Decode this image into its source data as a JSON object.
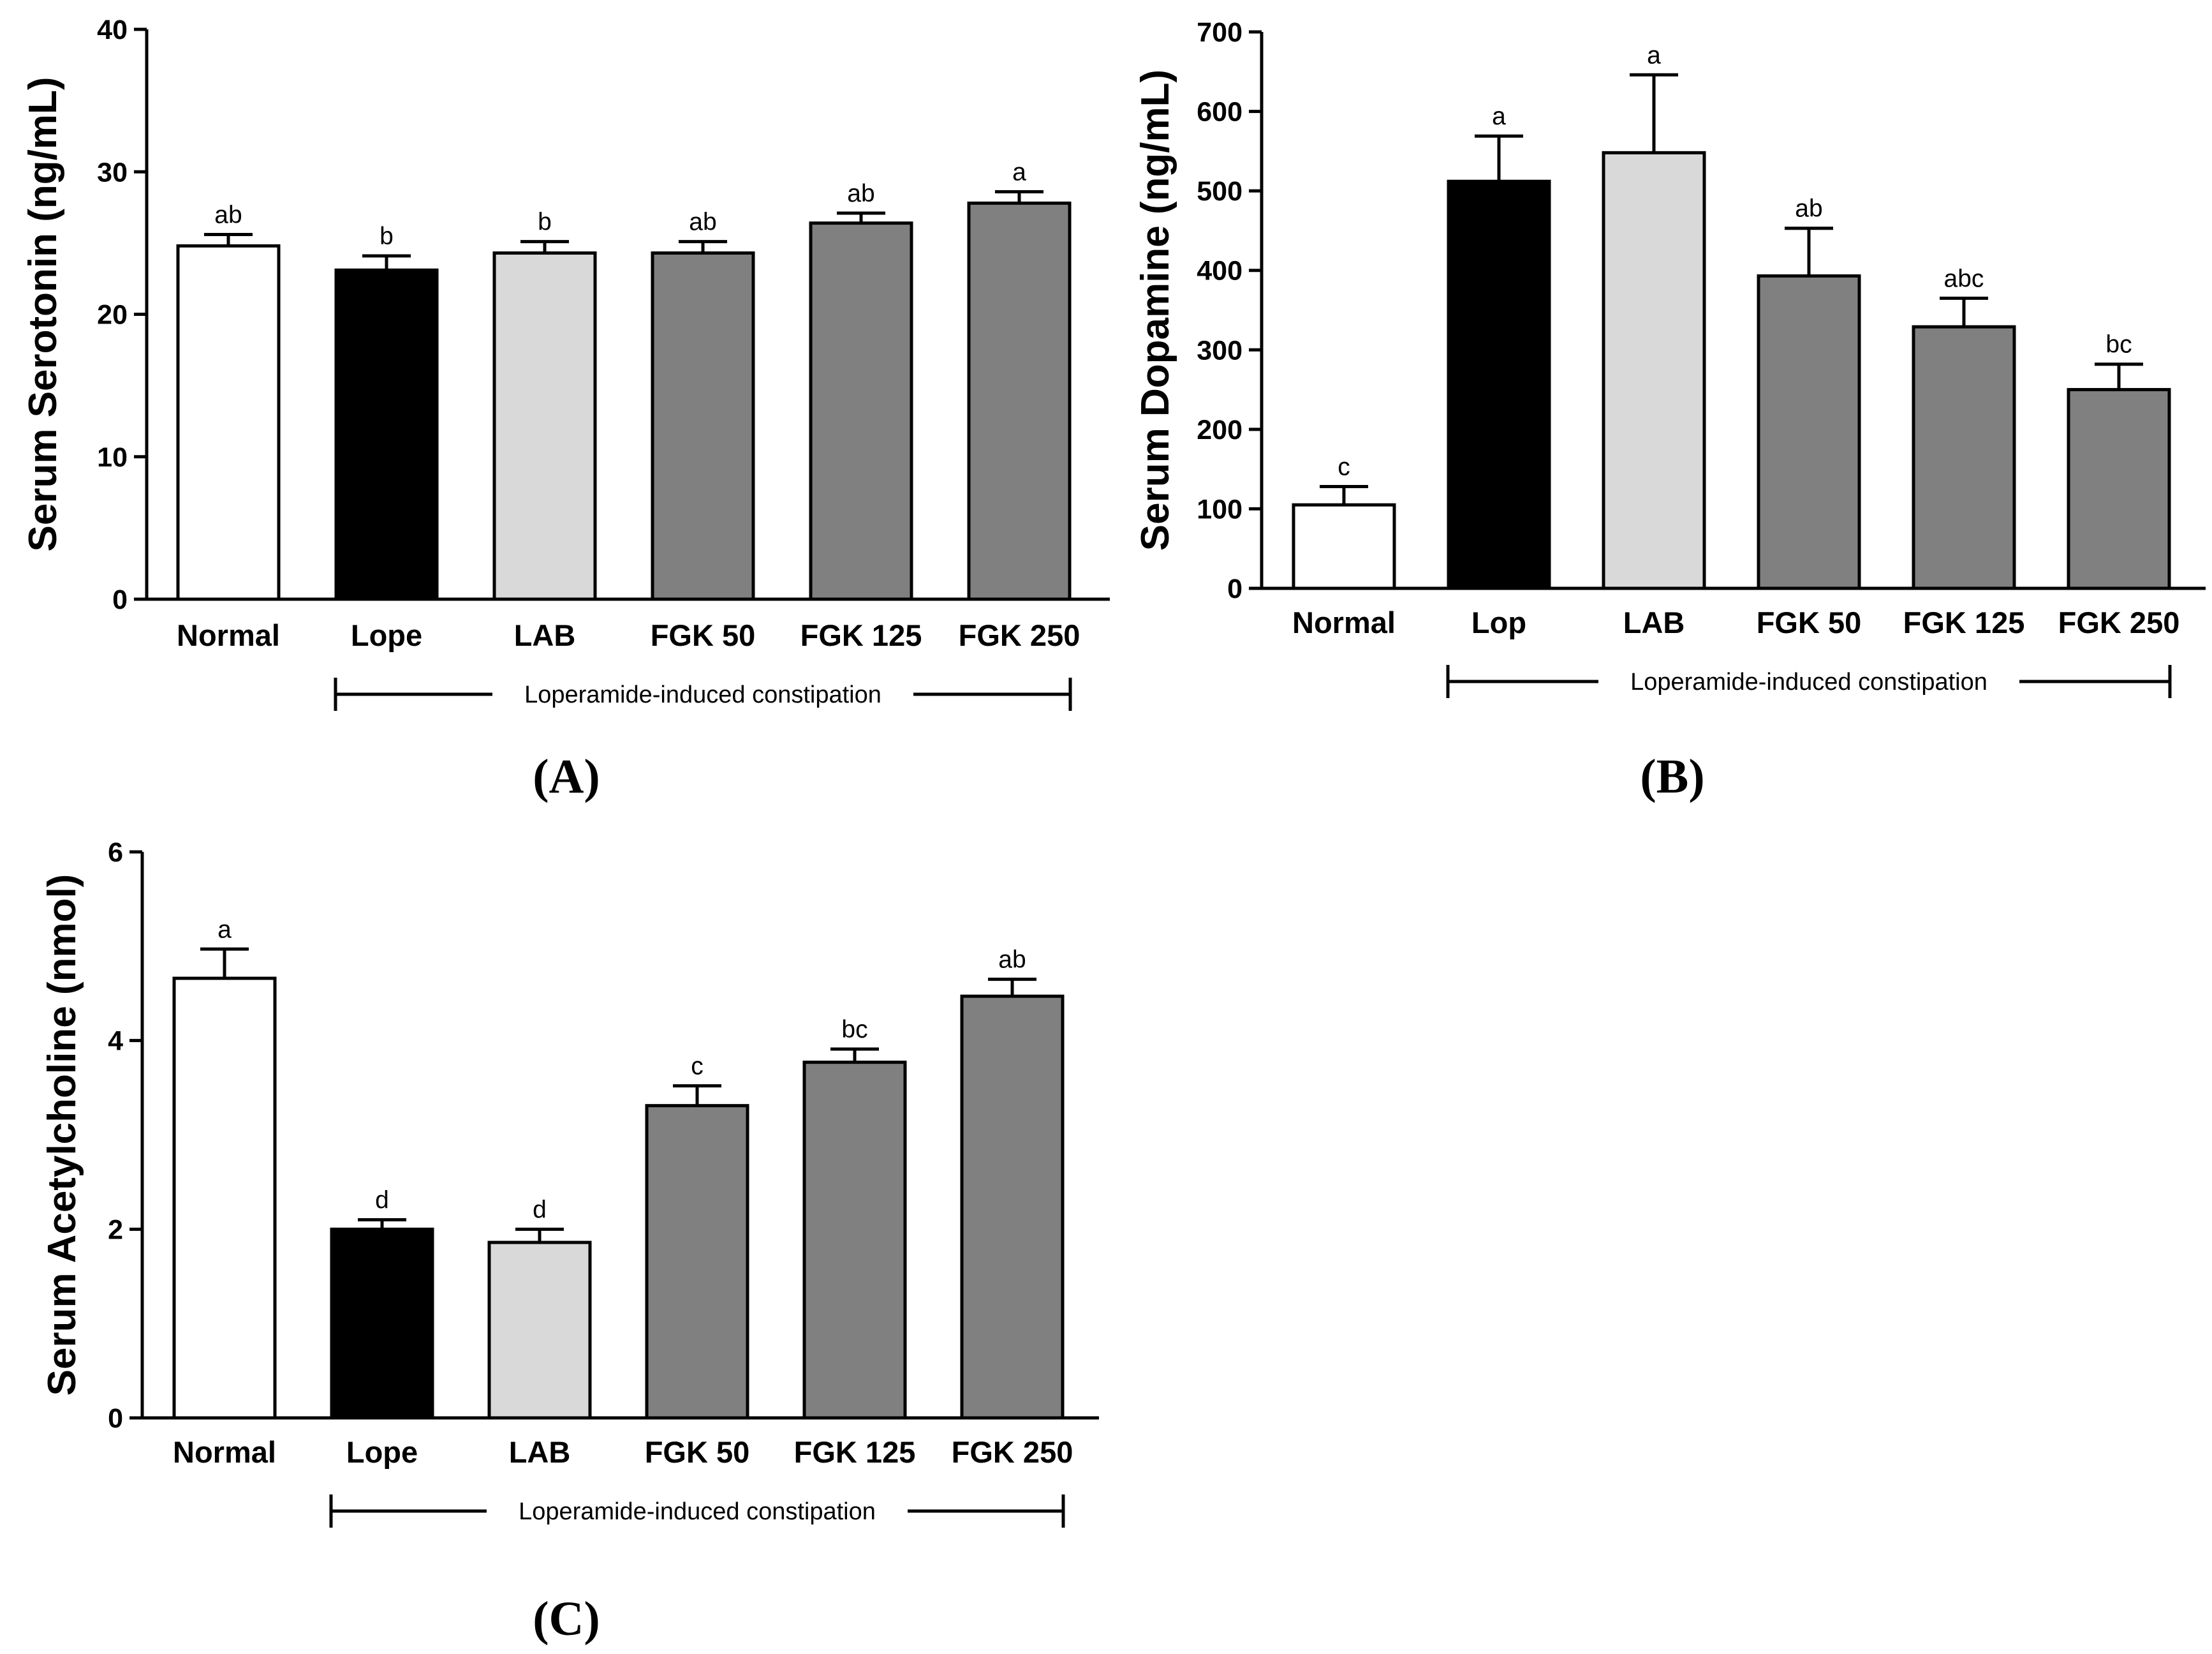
{
  "chart_data": [
    {
      "type": "bar",
      "panel_label": "(A)",
      "title": "",
      "xlabel": "",
      "ylabel": "Serum Serotonin (ng/mL)",
      "ylim": [
        0,
        40
      ],
      "yticks": [
        0,
        10,
        20,
        30,
        40
      ],
      "grid": false,
      "categories": [
        "Normal",
        "Lope",
        "LAB",
        "FGK 50",
        "FGK 125",
        "FGK 250"
      ],
      "values": [
        24.8,
        23.1,
        24.3,
        24.3,
        26.4,
        27.8
      ],
      "errors": [
        0.8,
        1.0,
        0.8,
        0.8,
        0.7,
        0.8
      ],
      "significance": [
        "ab",
        "b",
        "b",
        "ab",
        "ab",
        "a"
      ],
      "bar_colors": [
        "#ffffff",
        "#000000",
        "#d9d9d9",
        "#808080",
        "#808080",
        "#808080"
      ],
      "group_bracket": {
        "label": "Loperamide-induced constipation",
        "from": "Lope",
        "to": "FGK 250"
      }
    },
    {
      "type": "bar",
      "panel_label": "(B)",
      "title": "",
      "xlabel": "",
      "ylabel": "Serum Dopamine (ng/mL)",
      "ylim": [
        0,
        700
      ],
      "yticks": [
        0,
        100,
        200,
        300,
        400,
        500,
        600,
        700
      ],
      "grid": false,
      "categories": [
        "Normal",
        "Lop",
        "LAB",
        "FGK 50",
        "FGK 125",
        "FGK 250"
      ],
      "values": [
        105,
        512,
        548,
        393,
        329,
        250
      ],
      "errors": [
        23,
        57,
        98,
        60,
        36,
        32
      ],
      "significance": [
        "c",
        "a",
        "a",
        "ab",
        "abc",
        "bc"
      ],
      "bar_colors": [
        "#ffffff",
        "#000000",
        "#d9d9d9",
        "#808080",
        "#808080",
        "#808080"
      ],
      "group_bracket": {
        "label": "Loperamide-induced constipation",
        "from": "Lop",
        "to": "FGK 250"
      }
    },
    {
      "type": "bar",
      "panel_label": "(C)",
      "title": "",
      "xlabel": "",
      "ylabel": "Serum Acetylcholine (nmol)",
      "ylim": [
        0,
        6
      ],
      "yticks": [
        0,
        2,
        4,
        6
      ],
      "grid": false,
      "categories": [
        "Normal",
        "Lope",
        "LAB",
        "FGK 50",
        "FGK 125",
        "FGK 250"
      ],
      "values": [
        4.66,
        2.0,
        1.86,
        3.31,
        3.77,
        4.47
      ],
      "errors": [
        0.31,
        0.1,
        0.14,
        0.21,
        0.14,
        0.18
      ],
      "significance": [
        "a",
        "d",
        "d",
        "c",
        "bc",
        "ab"
      ],
      "bar_colors": [
        "#ffffff",
        "#000000",
        "#d9d9d9",
        "#808080",
        "#808080",
        "#808080"
      ],
      "group_bracket": {
        "label": "Loperamide-induced constipation",
        "from": "Lope",
        "to": "FGK 250"
      }
    }
  ]
}
